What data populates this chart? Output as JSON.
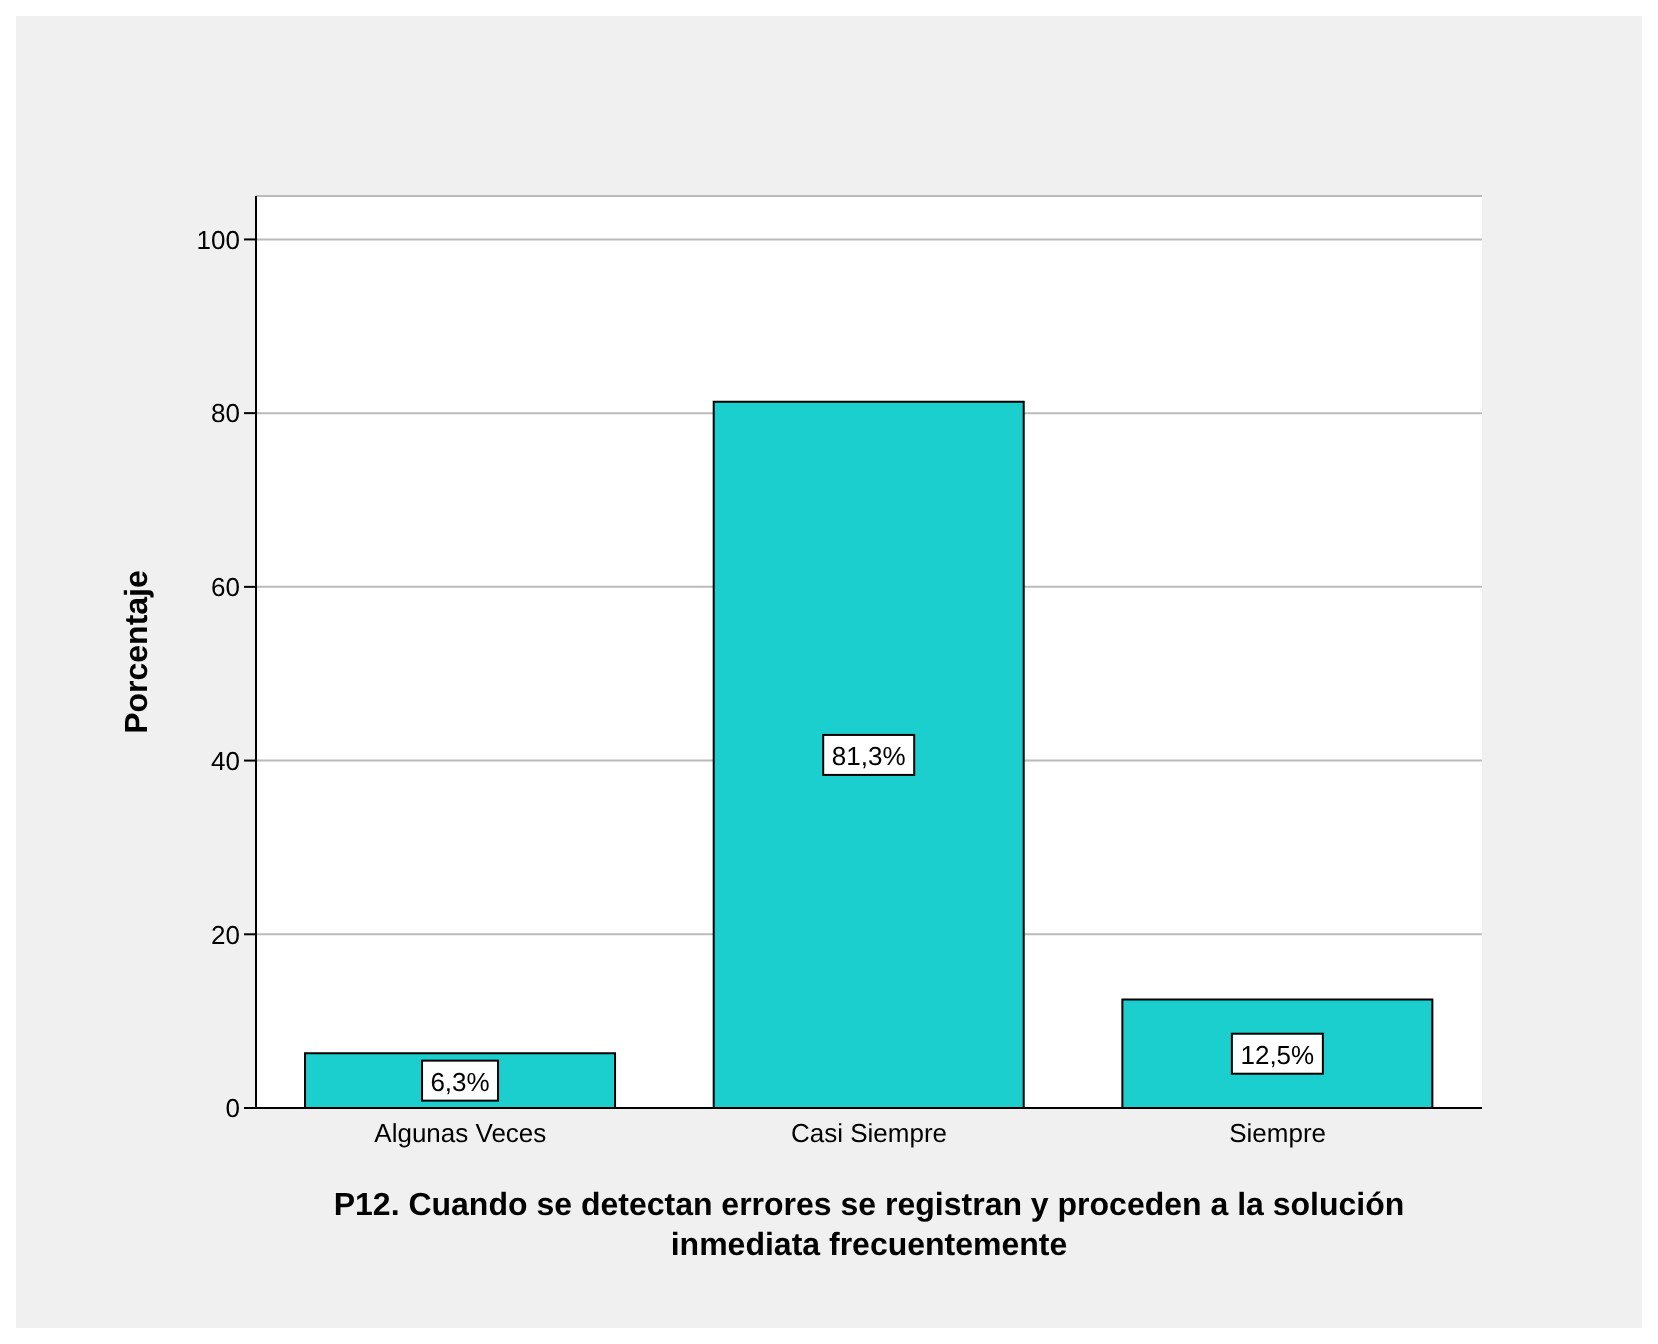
{
  "chart_data": {
    "type": "bar",
    "xlabel": "P12. Cuando se detectan errores se registran y proceden a la solución inmediata frecuentemente",
    "ylabel": "Porcentaje",
    "categories": [
      "Algunas Veces",
      "Casi Siempre",
      "Siempre"
    ],
    "values": [
      6.3,
      81.3,
      12.5
    ],
    "value_labels": [
      "6,3%",
      "81,3%",
      "12,5%"
    ],
    "color": "#1ccfcf",
    "ylim": [
      0,
      105
    ],
    "yticks": [
      0,
      20,
      40,
      60,
      80,
      100
    ],
    "grid": "y"
  }
}
